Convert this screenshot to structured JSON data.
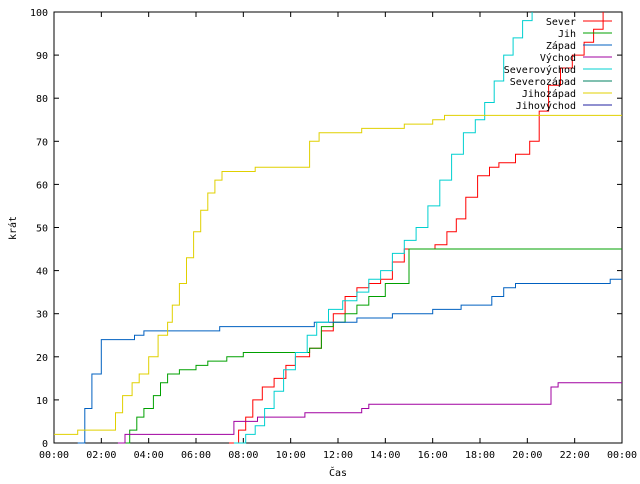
{
  "chart_data": {
    "type": "line",
    "title": "",
    "xlabel": "Čas",
    "ylabel": "krát",
    "xlim": [
      0,
      24
    ],
    "ylim": [
      0,
      100
    ],
    "grid": false,
    "legend": "top-right",
    "x_ticks": [
      {
        "value": 0,
        "label": "00:00"
      },
      {
        "value": 2,
        "label": "02:00"
      },
      {
        "value": 4,
        "label": "04:00"
      },
      {
        "value": 6,
        "label": "06:00"
      },
      {
        "value": 8,
        "label": "08:00"
      },
      {
        "value": 10,
        "label": "10:00"
      },
      {
        "value": 12,
        "label": "12:00"
      },
      {
        "value": 14,
        "label": "14:00"
      },
      {
        "value": 16,
        "label": "16:00"
      },
      {
        "value": 18,
        "label": "18:00"
      },
      {
        "value": 20,
        "label": "20:00"
      },
      {
        "value": 22,
        "label": "22:00"
      },
      {
        "value": 24,
        "label": "00:00"
      }
    ],
    "y_ticks": [
      {
        "value": 0,
        "label": "0"
      },
      {
        "value": 10,
        "label": "10"
      },
      {
        "value": 20,
        "label": "20"
      },
      {
        "value": 30,
        "label": "30"
      },
      {
        "value": 40,
        "label": "40"
      },
      {
        "value": 50,
        "label": "50"
      },
      {
        "value": 60,
        "label": "60"
      },
      {
        "value": 70,
        "label": "70"
      },
      {
        "value": 80,
        "label": "80"
      },
      {
        "value": 90,
        "label": "90"
      },
      {
        "value": 100,
        "label": "100"
      }
    ],
    "series": [
      {
        "name": "Sever",
        "color": "#ff0000",
        "points": [
          [
            7.4,
            0
          ],
          [
            7.8,
            3
          ],
          [
            8.1,
            6
          ],
          [
            8.4,
            10
          ],
          [
            8.8,
            13
          ],
          [
            9.3,
            15
          ],
          [
            9.8,
            18
          ],
          [
            10.2,
            20
          ],
          [
            10.8,
            22
          ],
          [
            11.3,
            26
          ],
          [
            11.8,
            30
          ],
          [
            12.3,
            34
          ],
          [
            12.8,
            36
          ],
          [
            13.3,
            37
          ],
          [
            13.8,
            38
          ],
          [
            14.3,
            42
          ],
          [
            14.8,
            45
          ],
          [
            15.5,
            45
          ],
          [
            16.1,
            46
          ],
          [
            16.6,
            49
          ],
          [
            17.0,
            52
          ],
          [
            17.4,
            57
          ],
          [
            17.9,
            62
          ],
          [
            18.4,
            64
          ],
          [
            18.8,
            65
          ],
          [
            19.5,
            67
          ],
          [
            20.1,
            70
          ],
          [
            20.5,
            77
          ],
          [
            20.9,
            83
          ],
          [
            21.4,
            87
          ],
          [
            21.9,
            90
          ],
          [
            22.4,
            93
          ],
          [
            22.8,
            96
          ],
          [
            23.2,
            100
          ]
        ]
      },
      {
        "name": "Jih",
        "color": "#00a000",
        "points": [
          [
            2.8,
            0
          ],
          [
            3.2,
            3
          ],
          [
            3.5,
            6
          ],
          [
            3.8,
            8
          ],
          [
            4.2,
            11
          ],
          [
            4.5,
            14
          ],
          [
            4.8,
            16
          ],
          [
            5.3,
            17
          ],
          [
            6.0,
            18
          ],
          [
            6.5,
            19
          ],
          [
            7.3,
            20
          ],
          [
            8.0,
            21
          ],
          [
            9.5,
            21
          ],
          [
            10.8,
            22
          ],
          [
            11.3,
            27
          ],
          [
            11.8,
            28
          ],
          [
            12.3,
            30
          ],
          [
            12.8,
            32
          ],
          [
            13.3,
            34
          ],
          [
            14.0,
            37
          ],
          [
            14.6,
            37
          ],
          [
            15.0,
            45
          ],
          [
            24,
            45
          ]
        ]
      },
      {
        "name": "Západ",
        "color": "#0060c0",
        "points": [
          [
            1.0,
            0
          ],
          [
            1.3,
            8
          ],
          [
            1.6,
            16
          ],
          [
            2.0,
            24
          ],
          [
            3.0,
            24
          ],
          [
            3.4,
            25
          ],
          [
            3.8,
            26
          ],
          [
            6.5,
            26
          ],
          [
            7.0,
            27
          ],
          [
            10.5,
            27
          ],
          [
            11.0,
            28
          ],
          [
            12.0,
            28
          ],
          [
            12.8,
            29
          ],
          [
            13.5,
            29
          ],
          [
            14.3,
            30
          ],
          [
            16.0,
            31
          ],
          [
            17.2,
            32
          ],
          [
            18.5,
            34
          ],
          [
            19.0,
            36
          ],
          [
            19.5,
            37
          ],
          [
            22.0,
            37
          ],
          [
            23.5,
            38
          ],
          [
            24,
            38
          ]
        ]
      },
      {
        "name": "Východ",
        "color": "#a000a0",
        "points": [
          [
            2.7,
            0
          ],
          [
            3.0,
            2
          ],
          [
            7.3,
            2
          ],
          [
            7.6,
            5
          ],
          [
            8.2,
            5
          ],
          [
            8.6,
            6
          ],
          [
            10.2,
            6
          ],
          [
            10.6,
            7
          ],
          [
            13.0,
            8
          ],
          [
            13.3,
            9
          ],
          [
            20.7,
            9
          ],
          [
            21.0,
            13
          ],
          [
            21.3,
            14
          ],
          [
            24,
            14
          ]
        ]
      },
      {
        "name": "Severovýchod",
        "color": "#00d0d0",
        "points": [
          [
            7.6,
            0
          ],
          [
            8.1,
            2
          ],
          [
            8.5,
            4
          ],
          [
            8.9,
            8
          ],
          [
            9.3,
            12
          ],
          [
            9.7,
            17
          ],
          [
            10.2,
            21
          ],
          [
            10.7,
            25
          ],
          [
            11.1,
            28
          ],
          [
            11.6,
            31
          ],
          [
            12.2,
            33
          ],
          [
            12.8,
            35
          ],
          [
            13.3,
            38
          ],
          [
            13.8,
            40
          ],
          [
            14.3,
            44
          ],
          [
            14.8,
            47
          ],
          [
            15.3,
            50
          ],
          [
            15.8,
            55
          ],
          [
            16.3,
            61
          ],
          [
            16.8,
            67
          ],
          [
            17.3,
            72
          ],
          [
            17.8,
            75
          ],
          [
            18.2,
            79
          ],
          [
            18.6,
            84
          ],
          [
            19.0,
            90
          ],
          [
            19.4,
            94
          ],
          [
            19.8,
            98
          ],
          [
            20.2,
            100
          ]
        ]
      },
      {
        "name": "Severozápad",
        "color": "#008060",
        "points": []
      },
      {
        "name": "Jihozápad",
        "color": "#e0d000",
        "points": [
          [
            0,
            2
          ],
          [
            1.0,
            3
          ],
          [
            2.3,
            3
          ],
          [
            2.6,
            7
          ],
          [
            2.9,
            11
          ],
          [
            3.3,
            14
          ],
          [
            3.6,
            16
          ],
          [
            4.0,
            20
          ],
          [
            4.4,
            25
          ],
          [
            4.8,
            28
          ],
          [
            5.0,
            32
          ],
          [
            5.3,
            37
          ],
          [
            5.6,
            43
          ],
          [
            5.9,
            49
          ],
          [
            6.2,
            54
          ],
          [
            6.5,
            58
          ],
          [
            6.8,
            61
          ],
          [
            7.1,
            63
          ],
          [
            8.0,
            63
          ],
          [
            8.5,
            64
          ],
          [
            10.2,
            64
          ],
          [
            10.8,
            70
          ],
          [
            11.2,
            72
          ],
          [
            13.0,
            73
          ],
          [
            14.5,
            73
          ],
          [
            14.8,
            74
          ],
          [
            16.0,
            75
          ],
          [
            16.5,
            76
          ],
          [
            24,
            76
          ]
        ]
      },
      {
        "name": "Jihovýchod",
        "color": "#2020a0",
        "points": []
      }
    ]
  }
}
